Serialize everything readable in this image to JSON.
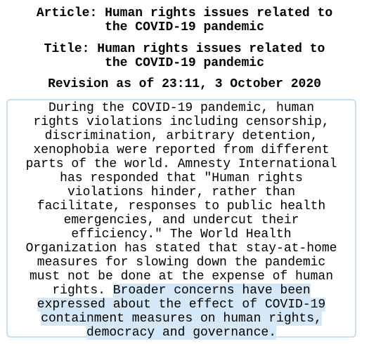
{
  "header": {
    "article_line1": "Article: Human rights issues related to",
    "article_line2": "the COVID-19 pandemic",
    "title_line1": "Title: Human rights issues related to",
    "title_line2": "the COVID-19 pandemic",
    "revision": "Revision as of 23:11, 3 October 2020"
  },
  "content": {
    "lines": [
      "During the COVID-19 pandemic, human",
      "rights violations including censorship,",
      "discrimination, arbitrary detention,",
      "xenophobia were reported from different",
      "parts of the world. Amnesty International",
      "has responded that \"Human rights",
      "violations hinder, rather than",
      "facilitate, responses to public health",
      "emergencies, and undercut their",
      "efficiency.\" The World Health",
      "Organization has stated that stay-at-home",
      "measures for slowing down the pandemic",
      "must not be done at the expense of human"
    ],
    "line14_plain": "rights. ",
    "line14_highlight": "Broader concerns have been",
    "highlighted_lines": [
      "expressed about the effect of COVID-19",
      "containment measures on human rights,",
      "democracy and governance."
    ],
    "highlight_color": "#d5e8f7",
    "border_color": "#c6dff3"
  }
}
